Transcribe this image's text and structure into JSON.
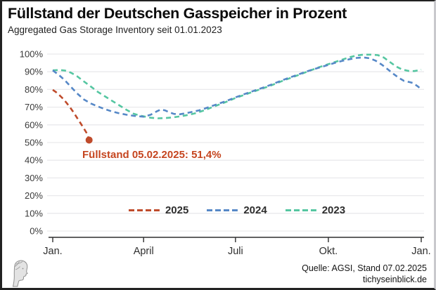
{
  "header": {
    "title": "Füllstand der Deutschen Gasspeicher in Prozent",
    "subtitle": "Aggregated Gas Storage Inventory seit 01.01.2023"
  },
  "chart_data": {
    "type": "line",
    "title": "Füllstand der Deutschen Gasspeicher in Prozent",
    "subtitle": "Aggregated Gas Storage Inventory seit 01.01.2023",
    "xlabel": "",
    "ylabel": "",
    "grid": true,
    "x_axis": {
      "range_days": [
        0,
        365
      ],
      "tick_days": [
        0,
        90,
        181,
        273,
        365
      ],
      "tick_labels": [
        "Jan.",
        "April",
        "Juli",
        "Okt.",
        "Jan."
      ]
    },
    "y_axis": {
      "range": [
        0,
        100
      ],
      "ticks": [
        0,
        10,
        20,
        30,
        40,
        50,
        60,
        70,
        80,
        90,
        100
      ],
      "tick_suffix": "%"
    },
    "series": [
      {
        "name": "2025",
        "color": "#bf4b2b",
        "dash": true,
        "end_marker": true,
        "points": [
          [
            0,
            79.8
          ],
          [
            3,
            78.6
          ],
          [
            7,
            76.6
          ],
          [
            10,
            74.9
          ],
          [
            14,
            72.2
          ],
          [
            17,
            70.0
          ],
          [
            21,
            66.8
          ],
          [
            24,
            64.0
          ],
          [
            28,
            60.5
          ],
          [
            31,
            57.8
          ],
          [
            34,
            55.0
          ],
          [
            36,
            51.4
          ]
        ]
      },
      {
        "name": "2024",
        "color": "#5688c7",
        "dash": true,
        "end_marker": false,
        "points": [
          [
            0,
            90.8
          ],
          [
            6,
            88.2
          ],
          [
            12,
            85.2
          ],
          [
            18,
            81.5
          ],
          [
            24,
            77.8
          ],
          [
            31,
            74.3
          ],
          [
            38,
            72.0
          ],
          [
            45,
            70.3
          ],
          [
            52,
            68.8
          ],
          [
            59,
            67.5
          ],
          [
            66,
            66.5
          ],
          [
            73,
            65.7
          ],
          [
            80,
            65.1
          ],
          [
            90,
            64.6
          ],
          [
            97,
            65.7
          ],
          [
            103,
            67.6
          ],
          [
            107,
            68.6
          ],
          [
            111,
            68.2
          ],
          [
            116,
            67.0
          ],
          [
            120,
            66.2
          ],
          [
            126,
            66.0
          ],
          [
            132,
            66.6
          ],
          [
            138,
            67.3
          ],
          [
            145,
            68.2
          ],
          [
            151,
            69.3
          ],
          [
            158,
            70.7
          ],
          [
            165,
            72.1
          ],
          [
            172,
            73.5
          ],
          [
            181,
            75.5
          ],
          [
            188,
            77.0
          ],
          [
            195,
            78.4
          ],
          [
            202,
            79.8
          ],
          [
            212,
            81.8
          ],
          [
            219,
            83.3
          ],
          [
            226,
            84.9
          ],
          [
            233,
            86.4
          ],
          [
            243,
            88.4
          ],
          [
            250,
            89.9
          ],
          [
            257,
            91.2
          ],
          [
            264,
            92.4
          ],
          [
            273,
            93.9
          ],
          [
            280,
            95.1
          ],
          [
            287,
            96.2
          ],
          [
            294,
            97.1
          ],
          [
            301,
            97.8
          ],
          [
            308,
            98.1
          ],
          [
            314,
            97.6
          ],
          [
            320,
            96.2
          ],
          [
            326,
            94.0
          ],
          [
            331,
            91.8
          ],
          [
            337,
            89.0
          ],
          [
            343,
            86.5
          ],
          [
            348,
            84.8
          ],
          [
            353,
            84.2
          ],
          [
            357,
            83.6
          ],
          [
            361,
            82.0
          ],
          [
            365,
            80.2
          ]
        ]
      },
      {
        "name": "2023",
        "color": "#55c6a1",
        "dash": true,
        "end_marker": false,
        "points": [
          [
            0,
            90.8
          ],
          [
            6,
            91.0
          ],
          [
            12,
            90.7
          ],
          [
            18,
            89.5
          ],
          [
            24,
            87.5
          ],
          [
            31,
            84.5
          ],
          [
            38,
            81.5
          ],
          [
            45,
            78.5
          ],
          [
            52,
            76.0
          ],
          [
            59,
            73.5
          ],
          [
            66,
            71.0
          ],
          [
            73,
            68.5
          ],
          [
            80,
            66.3
          ],
          [
            86,
            65.3
          ],
          [
            90,
            64.8
          ],
          [
            97,
            64.0
          ],
          [
            104,
            63.7
          ],
          [
            111,
            63.8
          ],
          [
            120,
            64.3
          ],
          [
            127,
            64.9
          ],
          [
            134,
            65.6
          ],
          [
            141,
            66.5
          ],
          [
            148,
            67.8
          ],
          [
            151,
            68.4
          ],
          [
            158,
            70.0
          ],
          [
            165,
            71.5
          ],
          [
            172,
            73.0
          ],
          [
            181,
            75.2
          ],
          [
            188,
            76.6
          ],
          [
            195,
            78.0
          ],
          [
            202,
            79.4
          ],
          [
            212,
            81.4
          ],
          [
            219,
            82.9
          ],
          [
            226,
            84.5
          ],
          [
            233,
            86.0
          ],
          [
            243,
            88.1
          ],
          [
            250,
            89.6
          ],
          [
            257,
            91.1
          ],
          [
            264,
            92.6
          ],
          [
            273,
            94.3
          ],
          [
            280,
            95.6
          ],
          [
            287,
            96.9
          ],
          [
            294,
            98.2
          ],
          [
            301,
            99.2
          ],
          [
            308,
            99.7
          ],
          [
            315,
            99.7
          ],
          [
            322,
            99.4
          ],
          [
            328,
            98.0
          ],
          [
            334,
            95.5
          ],
          [
            340,
            93.0
          ],
          [
            346,
            91.3
          ],
          [
            352,
            90.5
          ],
          [
            358,
            90.4
          ],
          [
            362,
            90.8
          ],
          [
            365,
            91.2
          ]
        ]
      }
    ],
    "annotation": {
      "text": "Füllstand 05.02.2025: 51,4%",
      "color": "#c5451f",
      "value": "51,4%",
      "date": "05.02.2025"
    },
    "legend": {
      "position": "bottom-center",
      "items": [
        {
          "label": "2025",
          "color": "#bf4b2b"
        },
        {
          "label": "2024",
          "color": "#5688c7"
        },
        {
          "label": "2023",
          "color": "#55c6a1"
        }
      ]
    }
  },
  "footer": {
    "source": "Quelle: AGSI, Stand 07.02.2025",
    "site": "tichyseinblick.de",
    "logo": "tichyseinblick-head-logo"
  },
  "colors": {
    "grid": "#e9e9ec",
    "axis": "#2e2e2e",
    "tick_text": "#3a3a3a",
    "background": "#ffffff"
  }
}
